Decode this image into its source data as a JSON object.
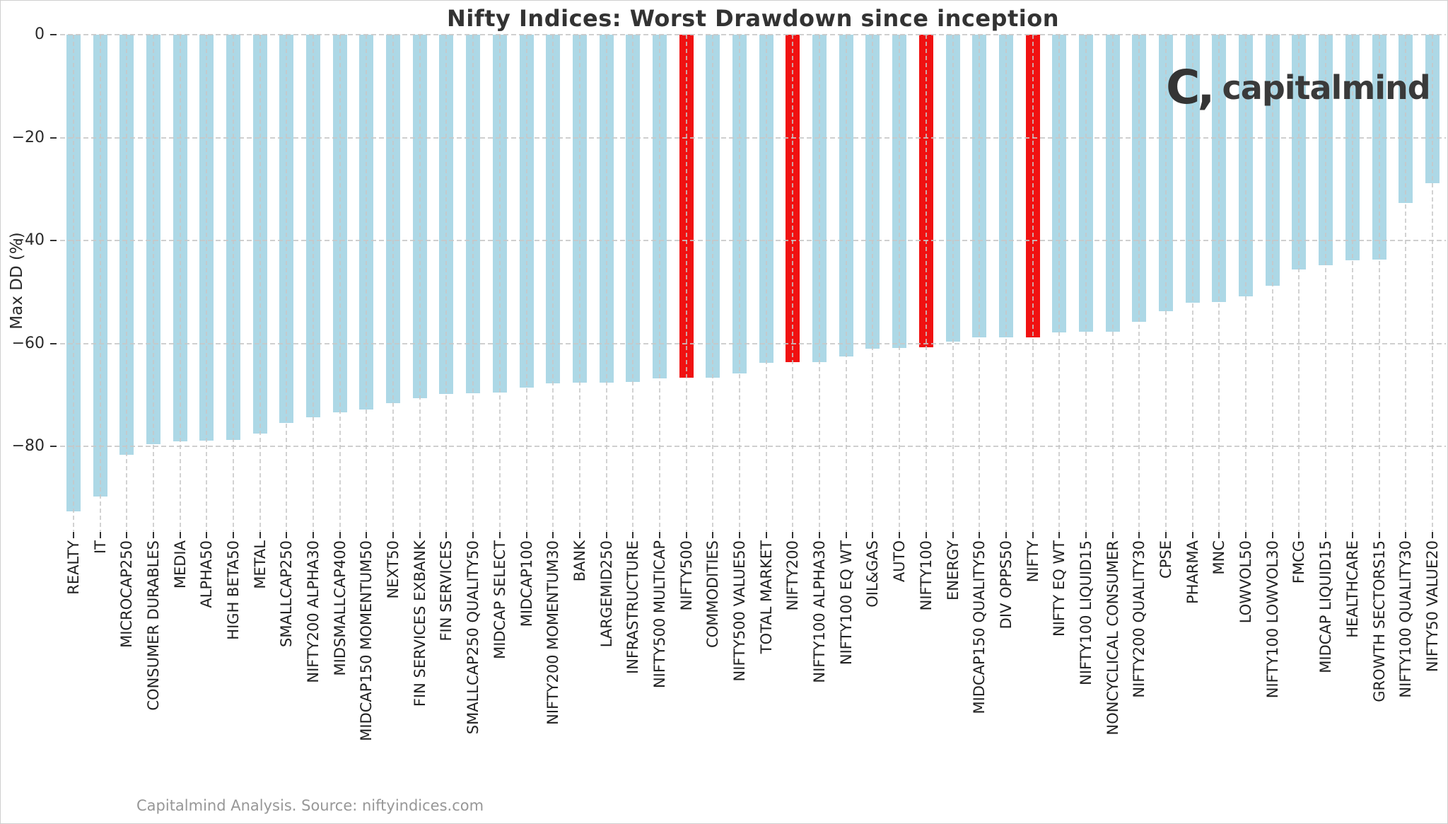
{
  "title": "Nifty Indices: Worst Drawdown since inception",
  "footer": {
    "source_note": "Capitalmind Analysis. Source: niftyindices.com"
  },
  "logo": {
    "mark": "C,",
    "text": "capitalmind"
  },
  "colors": {
    "bar": "#add8e6",
    "highlight": "#f01111",
    "grid": "#c7c7c7",
    "title_text": "#333333",
    "tick_text": "#2a2a2a",
    "footer_text": "#979797",
    "logo_text": "#3a3a3a"
  },
  "chart_data": {
    "type": "bar",
    "title": "Nifty Indices: Worst Drawdown since inception",
    "xlabel": "",
    "ylabel": "Max DD (%)",
    "ylim": [
      -96.5,
      0
    ],
    "yticks": [
      0,
      -20,
      -40,
      -60,
      -80
    ],
    "grid": "dashed horizontal gridlines at yticks plus dashed vertical gridline at every category",
    "legend": "none",
    "bar_color": "light blue",
    "highlight_color": "red",
    "highlight_categories": [
      "NIFTY500",
      "NIFTY200",
      "NIFTY100",
      "NIFTY"
    ],
    "categories": [
      "REALTY",
      "IT",
      "MICROCAP250",
      "CONSUMER DURABLES",
      "MEDIA",
      "ALPHA50",
      "HIGH BETA50",
      "METAL",
      "SMALLCAP250",
      "NIFTY200 ALPHA30",
      "MIDSMALLCAP400",
      "MIDCAP150 MOMENTUM50",
      "NEXT50",
      "FIN SERVICES EXBANK",
      "FIN SERVICES",
      "SMALLCAP250 QUALITY50",
      "MIDCAP SELECT",
      "MIDCAP100",
      "NIFTY200 MOMENTUM30",
      "BANK",
      "LARGEMID250",
      "INFRASTRUCTURE",
      "NIFTY500 MULTICAP",
      "NIFTY500",
      "COMMODITIES",
      "NIFTY500 VALUE50",
      "TOTAL MARKET",
      "NIFTY200",
      "NIFTY100 ALPHA30",
      "NIFTY100 EQ WT",
      "OIL&GAS",
      "AUTO",
      "NIFTY100",
      "ENERGY",
      "MIDCAP150 QUALITY50",
      "DIV OPPS50",
      "NIFTY",
      "NIFTY EQ WT",
      "NIFTY100 LIQUID15",
      "NONCYCLICAL CONSUMER",
      "NIFTY200 QUALITY30",
      "CPSE",
      "PHARMA",
      "MNC",
      "LOWVOL50",
      "NIFTY100 LOWVOL30",
      "FMCG",
      "MIDCAP LIQUID15",
      "HEALTHCARE",
      "GROWTH SECTORS15",
      "NIFTY100 QUALITY30",
      "NIFTY50 VALUE20"
    ],
    "values": [
      -92.7,
      -89.8,
      -81.6,
      -79.6,
      -79.0,
      -78.9,
      -78.8,
      -77.5,
      -75.4,
      -74.3,
      -73.4,
      -72.8,
      -71.6,
      -70.6,
      -69.8,
      -69.7,
      -69.6,
      -68.6,
      -67.7,
      -67.6,
      -67.6,
      -67.5,
      -66.8,
      -66.7,
      -66.6,
      -65.8,
      -63.8,
      -63.7,
      -63.6,
      -62.6,
      -61.0,
      -60.9,
      -60.8,
      -59.7,
      -58.9,
      -58.9,
      -58.8,
      -57.9,
      -57.8,
      -57.7,
      -55.8,
      -53.8,
      -52.1,
      -52.0,
      -50.8,
      -48.8,
      -45.7,
      -44.8,
      -43.8,
      -43.7,
      -32.7,
      -28.8
    ]
  }
}
